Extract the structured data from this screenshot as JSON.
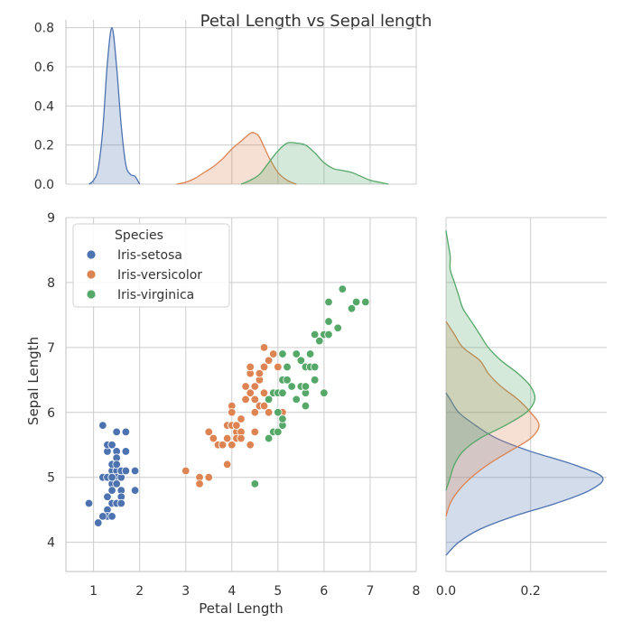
{
  "chart_data": {
    "type": "scatter",
    "title": "Petal Length vs Sepal length",
    "xlabel": "Petal Length",
    "ylabel": "Sepal Length",
    "xlim": [
      0.4,
      8
    ],
    "ylim": [
      3.55,
      9
    ],
    "xticks": [
      "1",
      "2",
      "3",
      "4",
      "5",
      "6",
      "7",
      "8"
    ],
    "yticks": [
      "4",
      "5",
      "6",
      "7",
      "8",
      "9"
    ],
    "legend": {
      "title": "Species",
      "placement": "top-left"
    },
    "series": [
      {
        "name": "Iris-setosa",
        "color": "#4c72b0",
        "points": [
          [
            0.9,
            4.6
          ],
          [
            1.1,
            4.3
          ],
          [
            1.2,
            5.8
          ],
          [
            1.2,
            5.0
          ],
          [
            1.3,
            5.4
          ],
          [
            1.3,
            5.5
          ],
          [
            1.3,
            5.0
          ],
          [
            1.3,
            4.5
          ],
          [
            1.3,
            4.4
          ],
          [
            1.3,
            4.7
          ],
          [
            1.4,
            5.1
          ],
          [
            1.4,
            4.9
          ],
          [
            1.4,
            5.0
          ],
          [
            1.4,
            4.6
          ],
          [
            1.4,
            4.4
          ],
          [
            1.4,
            5.2
          ],
          [
            1.4,
            5.5
          ],
          [
            1.4,
            4.8
          ],
          [
            1.5,
            5.1
          ],
          [
            1.5,
            4.6
          ],
          [
            1.5,
            5.0
          ],
          [
            1.5,
            5.4
          ],
          [
            1.5,
            5.3
          ],
          [
            1.5,
            5.7
          ],
          [
            1.5,
            4.9
          ],
          [
            1.5,
            5.2
          ],
          [
            1.6,
            4.8
          ],
          [
            1.6,
            5.0
          ],
          [
            1.6,
            5.1
          ],
          [
            1.6,
            4.7
          ],
          [
            1.6,
            4.6
          ],
          [
            1.7,
            5.7
          ],
          [
            1.7,
            5.4
          ],
          [
            1.7,
            5.1
          ],
          [
            1.9,
            5.1
          ],
          [
            1.9,
            4.8
          ],
          [
            1.2,
            4.4
          ],
          [
            1.4,
            5.0
          ]
        ],
        "kde_x": {
          "x": [
            0.9,
            1.0,
            1.1,
            1.2,
            1.3,
            1.4,
            1.5,
            1.6,
            1.7,
            1.8,
            1.9,
            2.0
          ],
          "density": [
            0.0,
            0.02,
            0.08,
            0.28,
            0.62,
            0.8,
            0.6,
            0.3,
            0.1,
            0.05,
            0.04,
            0.0
          ]
        },
        "kde_y": {
          "y": [
            3.8,
            4.0,
            4.2,
            4.4,
            4.6,
            4.8,
            5.0,
            5.2,
            5.4,
            5.6,
            5.8,
            6.0,
            6.2,
            6.3
          ],
          "density": [
            0.0,
            0.03,
            0.08,
            0.16,
            0.26,
            0.34,
            0.37,
            0.3,
            0.2,
            0.12,
            0.07,
            0.03,
            0.01,
            0.0
          ]
        }
      },
      {
        "name": "Iris-versicolor",
        "color": "#dd8452",
        "points": [
          [
            3.0,
            5.1
          ],
          [
            3.3,
            5.0
          ],
          [
            3.3,
            4.9
          ],
          [
            3.5,
            5.7
          ],
          [
            3.5,
            5.0
          ],
          [
            3.6,
            5.6
          ],
          [
            3.7,
            5.5
          ],
          [
            3.8,
            5.5
          ],
          [
            3.9,
            5.6
          ],
          [
            3.9,
            5.8
          ],
          [
            3.9,
            5.2
          ],
          [
            3.9,
            5.6
          ],
          [
            4.0,
            6.1
          ],
          [
            4.0,
            6.0
          ],
          [
            4.0,
            5.8
          ],
          [
            4.0,
            5.5
          ],
          [
            4.1,
            5.7
          ],
          [
            4.1,
            5.6
          ],
          [
            4.1,
            5.8
          ],
          [
            4.2,
            5.7
          ],
          [
            4.2,
            5.9
          ],
          [
            4.2,
            5.6
          ],
          [
            4.3,
            6.2
          ],
          [
            4.3,
            6.4
          ],
          [
            4.4,
            6.6
          ],
          [
            4.4,
            6.3
          ],
          [
            4.4,
            6.7
          ],
          [
            4.4,
            5.5
          ],
          [
            4.5,
            6.4
          ],
          [
            4.5,
            6.0
          ],
          [
            4.5,
            6.2
          ],
          [
            4.5,
            5.7
          ],
          [
            4.6,
            6.5
          ],
          [
            4.6,
            6.1
          ],
          [
            4.6,
            6.6
          ],
          [
            4.7,
            7.0
          ],
          [
            4.7,
            6.1
          ],
          [
            4.7,
            6.7
          ],
          [
            4.7,
            6.3
          ],
          [
            4.8,
            6.8
          ],
          [
            4.8,
            6.0
          ],
          [
            4.9,
            6.9
          ],
          [
            4.9,
            6.3
          ],
          [
            5.0,
            6.7
          ],
          [
            5.1,
            6.0
          ]
        ],
        "kde_x": {
          "x": [
            2.8,
            3.0,
            3.2,
            3.4,
            3.6,
            3.8,
            4.0,
            4.2,
            4.4,
            4.5,
            4.6,
            4.8,
            5.0,
            5.2,
            5.4
          ],
          "density": [
            0.0,
            0.01,
            0.03,
            0.06,
            0.09,
            0.13,
            0.18,
            0.22,
            0.26,
            0.26,
            0.24,
            0.14,
            0.06,
            0.02,
            0.0
          ]
        },
        "kde_y": {
          "y": [
            4.4,
            4.6,
            4.8,
            5.0,
            5.2,
            5.4,
            5.6,
            5.8,
            6.0,
            6.2,
            6.4,
            6.6,
            6.8,
            7.0,
            7.2,
            7.4
          ],
          "density": [
            0.0,
            0.01,
            0.03,
            0.06,
            0.1,
            0.15,
            0.2,
            0.22,
            0.2,
            0.17,
            0.13,
            0.1,
            0.08,
            0.04,
            0.02,
            0.0
          ]
        }
      },
      {
        "name": "Iris-virginica",
        "color": "#55a868",
        "points": [
          [
            4.5,
            4.9
          ],
          [
            4.8,
            5.6
          ],
          [
            4.8,
            6.2
          ],
          [
            4.9,
            5.7
          ],
          [
            4.9,
            6.3
          ],
          [
            5.0,
            6.0
          ],
          [
            5.0,
            5.7
          ],
          [
            5.0,
            6.3
          ],
          [
            5.1,
            5.8
          ],
          [
            5.1,
            5.9
          ],
          [
            5.1,
            6.3
          ],
          [
            5.1,
            6.5
          ],
          [
            5.1,
            6.9
          ],
          [
            5.2,
            6.5
          ],
          [
            5.2,
            6.7
          ],
          [
            5.3,
            6.4
          ],
          [
            5.4,
            6.2
          ],
          [
            5.4,
            6.9
          ],
          [
            5.5,
            6.8
          ],
          [
            5.5,
            6.4
          ],
          [
            5.6,
            6.3
          ],
          [
            5.6,
            6.1
          ],
          [
            5.6,
            6.4
          ],
          [
            5.6,
            6.7
          ],
          [
            5.7,
            6.7
          ],
          [
            5.7,
            6.9
          ],
          [
            5.8,
            6.7
          ],
          [
            5.8,
            7.2
          ],
          [
            5.8,
            6.5
          ],
          [
            5.9,
            7.1
          ],
          [
            6.0,
            7.2
          ],
          [
            6.0,
            6.3
          ],
          [
            6.1,
            7.7
          ],
          [
            6.1,
            7.2
          ],
          [
            6.1,
            7.4
          ],
          [
            6.3,
            7.3
          ],
          [
            6.4,
            7.9
          ],
          [
            6.6,
            7.6
          ],
          [
            6.7,
            7.7
          ],
          [
            6.9,
            7.7
          ]
        ],
        "kde_x": {
          "x": [
            4.2,
            4.4,
            4.6,
            4.8,
            5.0,
            5.2,
            5.4,
            5.6,
            5.8,
            6.0,
            6.2,
            6.4,
            6.6,
            6.8,
            7.0,
            7.2,
            7.4
          ],
          "density": [
            0.0,
            0.02,
            0.05,
            0.11,
            0.17,
            0.21,
            0.21,
            0.2,
            0.16,
            0.11,
            0.08,
            0.07,
            0.06,
            0.04,
            0.02,
            0.01,
            0.0
          ]
        },
        "kde_y": {
          "y": [
            4.8,
            5.0,
            5.2,
            5.4,
            5.6,
            5.8,
            6.0,
            6.2,
            6.4,
            6.6,
            6.8,
            7.0,
            7.2,
            7.4,
            7.6,
            7.8,
            8.0,
            8.2,
            8.4,
            8.6,
            8.8
          ],
          "density": [
            0.0,
            0.01,
            0.02,
            0.04,
            0.08,
            0.14,
            0.19,
            0.21,
            0.2,
            0.17,
            0.13,
            0.1,
            0.08,
            0.06,
            0.04,
            0.03,
            0.02,
            0.01,
            0.01,
            0.005,
            0.0
          ]
        }
      }
    ],
    "marginal_x": {
      "ylim": [
        0,
        0.84
      ],
      "yticks": [
        "0.0",
        "0.2",
        "0.4",
        "0.6",
        "0.8"
      ]
    },
    "marginal_y": {
      "xlim": [
        0,
        0.38
      ],
      "xticks": [
        "0.0",
        "0.2"
      ]
    }
  }
}
